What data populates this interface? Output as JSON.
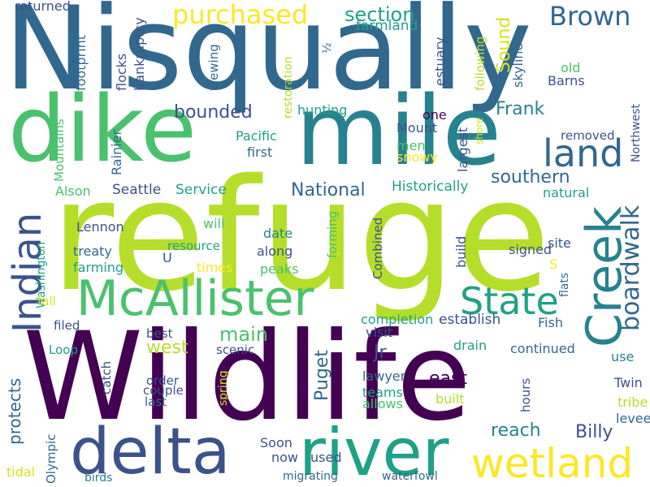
{
  "words": [
    {
      "text": "refuge",
      "color": "#b5de2b"
    },
    {
      "text": "Wildlife",
      "color": "#440154"
    },
    {
      "text": "Nisqually",
      "color": "#31688e"
    },
    {
      "text": "mile",
      "color": "#26828e"
    },
    {
      "text": "dike",
      "color": "#4ac16d"
    },
    {
      "text": "delta",
      "color": "#3b528b"
    },
    {
      "text": "river",
      "color": "#1fa187"
    },
    {
      "text": "McAllister",
      "color": "#4ac16d"
    },
    {
      "text": "Creek",
      "color": "#26828e"
    },
    {
      "text": "wetland",
      "color": "#fde725"
    },
    {
      "text": "Indian",
      "color": "#3b528b"
    },
    {
      "text": "State",
      "color": "#1fa187"
    },
    {
      "text": "land",
      "color": "#31688e"
    },
    {
      "text": "boardwalk",
      "color": "#31688e"
    },
    {
      "text": "purchased",
      "color": "#fde725"
    },
    {
      "text": "Brown",
      "color": "#31688e"
    },
    {
      "text": "section",
      "color": "#1fa187"
    },
    {
      "text": "Sound",
      "color": "#d8e219"
    },
    {
      "text": "bounded",
      "color": "#3b528b"
    },
    {
      "text": "Frank",
      "color": "#26828e"
    },
    {
      "text": "southern",
      "color": "#31688e"
    },
    {
      "text": "National",
      "color": "#31688e"
    },
    {
      "text": "main",
      "color": "#4ac16d"
    },
    {
      "text": "west",
      "color": "#b5de2b"
    },
    {
      "text": "Puget",
      "color": "#31688e"
    },
    {
      "text": "Jr",
      "color": "#3b528b"
    },
    {
      "text": "east",
      "color": "#440154"
    },
    {
      "text": "reach",
      "color": "#26828e"
    },
    {
      "text": "Billy",
      "color": "#3b528b"
    },
    {
      "text": "Historically",
      "color": "#1fa187"
    },
    {
      "text": "Seattle",
      "color": "#3b528b"
    },
    {
      "text": "Service",
      "color": "#1fa187"
    },
    {
      "text": "protects",
      "color": "#31688e"
    },
    {
      "text": "returned",
      "color": "#3b528b"
    },
    {
      "text": "footprint",
      "color": "#31688e"
    },
    {
      "text": "flocks",
      "color": "#3b528b"
    },
    {
      "text": "bankruptcy",
      "color": "#3b528b"
    },
    {
      "text": "viewing",
      "color": "#31688e"
    },
    {
      "text": "restoration",
      "color": "#b5de2b"
    },
    {
      "text": "½",
      "color": "#31688e"
    },
    {
      "text": "farmland",
      "color": "#1fa187"
    },
    {
      "text": "estuary",
      "color": "#3b528b"
    },
    {
      "text": "following",
      "color": "#b5de2b"
    },
    {
      "text": "skyline",
      "color": "#31688e"
    },
    {
      "text": "old",
      "color": "#4ac16d"
    },
    {
      "text": "Barns",
      "color": "#3b528b"
    },
    {
      "text": "Northwest",
      "color": "#3b528b"
    },
    {
      "text": "removed",
      "color": "#3b528b"
    },
    {
      "text": "shore",
      "color": "#d8e219"
    },
    {
      "text": "largest",
      "color": "#3b528b"
    },
    {
      "text": "one",
      "color": "#440154"
    },
    {
      "text": "Mount",
      "color": "#3b528b"
    },
    {
      "text": "men",
      "color": "#4ac16d"
    },
    {
      "text": "snowy",
      "color": "#fde725"
    },
    {
      "text": "hunting",
      "color": "#1fa187"
    },
    {
      "text": "Pacific",
      "color": "#1fa187"
    },
    {
      "text": "first",
      "color": "#31688e"
    },
    {
      "text": "Mountains",
      "color": "#4ac16d"
    },
    {
      "text": "Rainier",
      "color": "#31688e"
    },
    {
      "text": "Alson",
      "color": "#4ac16d"
    },
    {
      "text": "Lennon",
      "color": "#3b528b"
    },
    {
      "text": "will",
      "color": "#4ac16d"
    },
    {
      "text": "date",
      "color": "#26828e"
    },
    {
      "text": "treaty",
      "color": "#31688e"
    },
    {
      "text": "resource",
      "color": "#1fa187"
    },
    {
      "text": "along",
      "color": "#3b528b"
    },
    {
      "text": "U",
      "color": "#3b528b"
    },
    {
      "text": "farming",
      "color": "#1fa187"
    },
    {
      "text": "times",
      "color": "#fde725"
    },
    {
      "text": "peaks",
      "color": "#4ac16d"
    },
    {
      "text": "Washington",
      "color": "#1fa187"
    },
    {
      "text": "forming",
      "color": "#4ac16d"
    },
    {
      "text": "Combined",
      "color": "#3b528b"
    },
    {
      "text": "build",
      "color": "#3b528b"
    },
    {
      "text": "site",
      "color": "#3b528b"
    },
    {
      "text": "natural",
      "color": "#1fa187"
    },
    {
      "text": "signed",
      "color": "#3b528b"
    },
    {
      "text": "S",
      "color": "#fde725"
    },
    {
      "text": "flats",
      "color": "#31688e"
    },
    {
      "text": "fall",
      "color": "#d8e219"
    },
    {
      "text": "filed",
      "color": "#3b528b"
    },
    {
      "text": "completion",
      "color": "#1fa187"
    },
    {
      "text": "establish",
      "color": "#3b528b"
    },
    {
      "text": "Fish",
      "color": "#31688e"
    },
    {
      "text": "visit",
      "color": "#3b528b"
    },
    {
      "text": "best",
      "color": "#3b528b"
    },
    {
      "text": "Loop",
      "color": "#1fa187"
    },
    {
      "text": "scenic",
      "color": "#3b528b"
    },
    {
      "text": "drain",
      "color": "#1fa187"
    },
    {
      "text": "continued",
      "color": "#31688e"
    },
    {
      "text": "use",
      "color": "#26828e"
    },
    {
      "text": "catch",
      "color": "#3b528b"
    },
    {
      "text": "order",
      "color": "#3b528b"
    },
    {
      "text": "couple",
      "color": "#3b528b"
    },
    {
      "text": "last",
      "color": "#31688e"
    },
    {
      "text": "spring",
      "color": "#d8e219"
    },
    {
      "text": "lawyer",
      "color": "#31688e"
    },
    {
      "text": "teams",
      "color": "#1fa187"
    },
    {
      "text": "allows",
      "color": "#4ac16d"
    },
    {
      "text": "built",
      "color": "#b5de2b"
    },
    {
      "text": "hours",
      "color": "#3b528b"
    },
    {
      "text": "Twin",
      "color": "#3b528b"
    },
    {
      "text": "tribe",
      "color": "#b5de2b"
    },
    {
      "text": "levee",
      "color": "#31688e"
    },
    {
      "text": "Olympic",
      "color": "#31688e"
    },
    {
      "text": "tidal",
      "color": "#d8e219"
    },
    {
      "text": "birds",
      "color": "#26828e"
    },
    {
      "text": "Soon",
      "color": "#3b528b"
    },
    {
      "text": "now",
      "color": "#3b528b"
    },
    {
      "text": "used",
      "color": "#3b528b"
    },
    {
      "text": "migrating",
      "color": "#31688e"
    },
    {
      "text": "waterfowl",
      "color": "#31688e"
    }
  ]
}
